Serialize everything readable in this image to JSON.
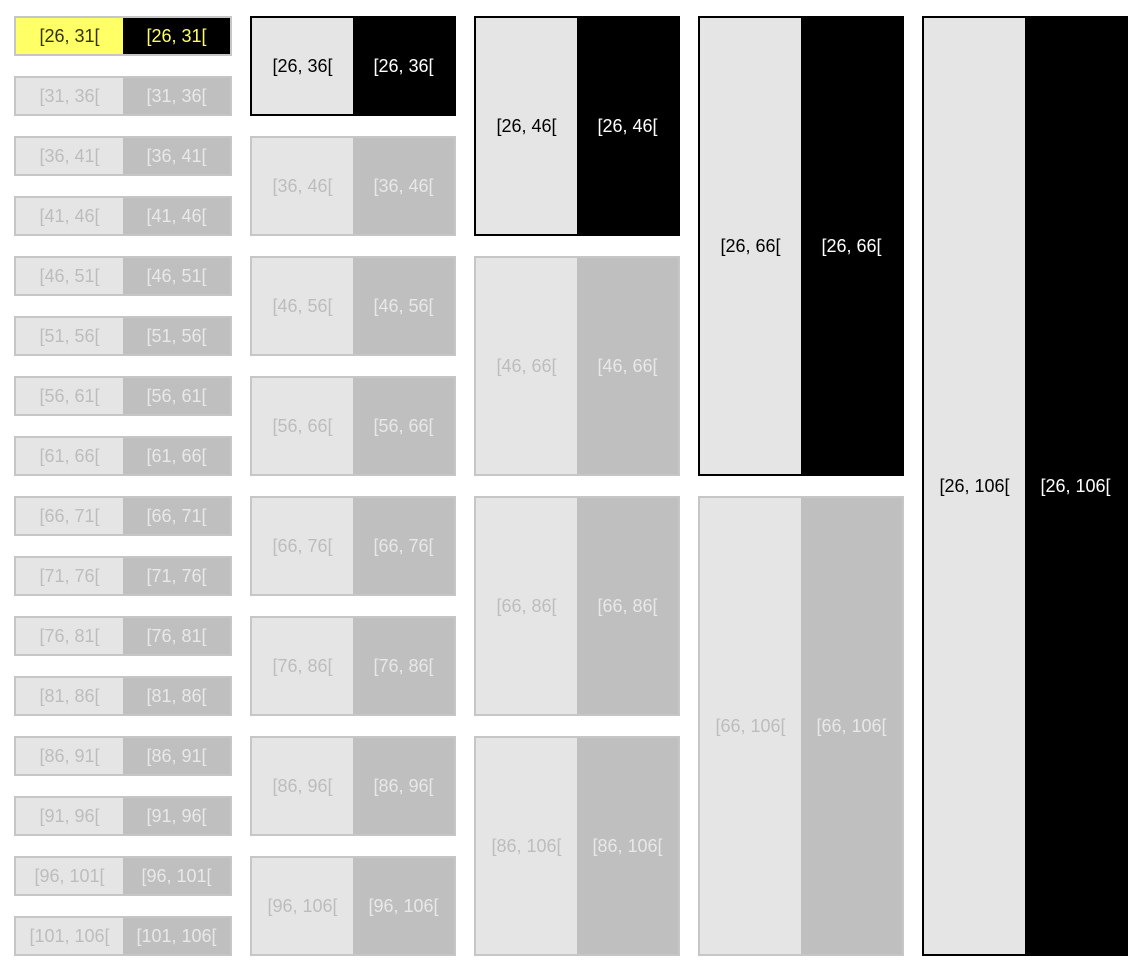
{
  "colors": {
    "inactive_border": "#c6c6c6",
    "inactive_left_fill": "#e5e5e5",
    "inactive_left_text": "#bdbdbd",
    "inactive_right_fill": "#bfbfbf",
    "inactive_right_text": "#e8e8e8",
    "active_border": "#000000",
    "active_right_fill": "#000000",
    "active_right_text": "#ffffff",
    "highlight_fill": "#ffff66",
    "highlight_text": "#ffff66"
  },
  "columns": [
    {
      "step": 5,
      "intervals": [
        {
          "left_label": "[26, 31[",
          "right_label": "[26, 31[",
          "start": 26,
          "end": 31,
          "state": "highlight"
        },
        {
          "left_label": "[31, 36[",
          "right_label": "[31, 36[",
          "start": 31,
          "end": 36,
          "state": "inactive"
        },
        {
          "left_label": "[36, 41[",
          "right_label": "[36, 41[",
          "start": 36,
          "end": 41,
          "state": "inactive"
        },
        {
          "left_label": "[41, 46[",
          "right_label": "[41, 46[",
          "start": 41,
          "end": 46,
          "state": "inactive"
        },
        {
          "left_label": "[46, 51[",
          "right_label": "[46, 51[",
          "start": 46,
          "end": 51,
          "state": "inactive"
        },
        {
          "left_label": "[51, 56[",
          "right_label": "[51, 56[",
          "start": 51,
          "end": 56,
          "state": "inactive"
        },
        {
          "left_label": "[56, 61[",
          "right_label": "[56, 61[",
          "start": 56,
          "end": 61,
          "state": "inactive"
        },
        {
          "left_label": "[61, 66[",
          "right_label": "[61, 66[",
          "start": 61,
          "end": 66,
          "state": "inactive"
        },
        {
          "left_label": "[66, 71[",
          "right_label": "[66, 71[",
          "start": 66,
          "end": 71,
          "state": "inactive"
        },
        {
          "left_label": "[71, 76[",
          "right_label": "[71, 76[",
          "start": 71,
          "end": 76,
          "state": "inactive"
        },
        {
          "left_label": "[76, 81[",
          "right_label": "[76, 81[",
          "start": 76,
          "end": 81,
          "state": "inactive"
        },
        {
          "left_label": "[81, 86[",
          "right_label": "[81, 86[",
          "start": 81,
          "end": 86,
          "state": "inactive"
        },
        {
          "left_label": "[86, 91[",
          "right_label": "[86, 91[",
          "start": 86,
          "end": 91,
          "state": "inactive"
        },
        {
          "left_label": "[91, 96[",
          "right_label": "[91, 96[",
          "start": 91,
          "end": 96,
          "state": "inactive"
        },
        {
          "left_label": "[96, 101[",
          "right_label": "[96, 101[",
          "start": 96,
          "end": 101,
          "state": "inactive"
        },
        {
          "left_label": "[101, 106[",
          "right_label": "[101, 106[",
          "start": 101,
          "end": 106,
          "state": "inactive"
        }
      ]
    },
    {
      "step": 10,
      "intervals": [
        {
          "left_label": "[26, 36[",
          "right_label": "[26, 36[",
          "start": 26,
          "end": 36,
          "state": "active"
        },
        {
          "left_label": "[36, 46[",
          "right_label": "[36, 46[",
          "start": 36,
          "end": 46,
          "state": "inactive"
        },
        {
          "left_label": "[46, 56[",
          "right_label": "[46, 56[",
          "start": 46,
          "end": 56,
          "state": "inactive"
        },
        {
          "left_label": "[56, 66[",
          "right_label": "[56, 66[",
          "start": 56,
          "end": 66,
          "state": "inactive"
        },
        {
          "left_label": "[66, 76[",
          "right_label": "[66, 76[",
          "start": 66,
          "end": 76,
          "state": "inactive"
        },
        {
          "left_label": "[76, 86[",
          "right_label": "[76, 86[",
          "start": 76,
          "end": 86,
          "state": "inactive"
        },
        {
          "left_label": "[86, 96[",
          "right_label": "[86, 96[",
          "start": 86,
          "end": 96,
          "state": "inactive"
        },
        {
          "left_label": "[96, 106[",
          "right_label": "[96, 106[",
          "start": 96,
          "end": 106,
          "state": "inactive"
        }
      ]
    },
    {
      "step": 20,
      "intervals": [
        {
          "left_label": "[26, 46[",
          "right_label": "[26, 46[",
          "start": 26,
          "end": 46,
          "state": "active"
        },
        {
          "left_label": "[46, 66[",
          "right_label": "[46, 66[",
          "start": 46,
          "end": 66,
          "state": "inactive"
        },
        {
          "left_label": "[66, 86[",
          "right_label": "[66, 86[",
          "start": 66,
          "end": 86,
          "state": "inactive"
        },
        {
          "left_label": "[86, 106[",
          "right_label": "[86, 106[",
          "start": 86,
          "end": 106,
          "state": "inactive"
        }
      ]
    },
    {
      "step": 40,
      "intervals": [
        {
          "left_label": "[26, 66[",
          "right_label": "[26, 66[",
          "start": 26,
          "end": 66,
          "state": "active"
        },
        {
          "left_label": "[66, 106[",
          "right_label": "[66, 106[",
          "start": 66,
          "end": 106,
          "state": "inactive"
        }
      ]
    },
    {
      "step": 80,
      "intervals": [
        {
          "left_label": "[26, 106[",
          "right_label": "[26, 106[",
          "start": 26,
          "end": 106,
          "state": "active"
        }
      ]
    }
  ]
}
